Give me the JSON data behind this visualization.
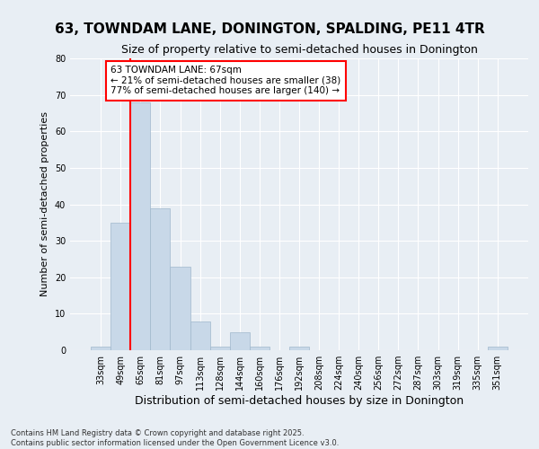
{
  "title": "63, TOWNDAM LANE, DONINGTON, SPALDING, PE11 4TR",
  "subtitle": "Size of property relative to semi-detached houses in Donington",
  "xlabel": "Distribution of semi-detached houses by size in Donington",
  "ylabel": "Number of semi-detached properties",
  "categories": [
    "33sqm",
    "49sqm",
    "65sqm",
    "81sqm",
    "97sqm",
    "113sqm",
    "128sqm",
    "144sqm",
    "160sqm",
    "176sqm",
    "192sqm",
    "208sqm",
    "224sqm",
    "240sqm",
    "256sqm",
    "272sqm",
    "287sqm",
    "303sqm",
    "319sqm",
    "335sqm",
    "351sqm"
  ],
  "values": [
    1,
    35,
    68,
    39,
    23,
    8,
    1,
    5,
    1,
    0,
    1,
    0,
    0,
    0,
    0,
    0,
    0,
    0,
    0,
    0,
    1
  ],
  "bar_color": "#c8d8e8",
  "bar_edge_color": "#a0b8cc",
  "vline_x_index": 2.0,
  "vline_color": "red",
  "annotation_text": "63 TOWNDAM LANE: 67sqm\n← 21% of semi-detached houses are smaller (38)\n77% of semi-detached houses are larger (140) →",
  "annotation_box_color": "white",
  "annotation_box_edge": "red",
  "ylim": [
    0,
    80
  ],
  "yticks": [
    0,
    10,
    20,
    30,
    40,
    50,
    60,
    70,
    80
  ],
  "background_color": "#e8eef4",
  "grid_color": "white",
  "footer": "Contains HM Land Registry data © Crown copyright and database right 2025.\nContains public sector information licensed under the Open Government Licence v3.0."
}
